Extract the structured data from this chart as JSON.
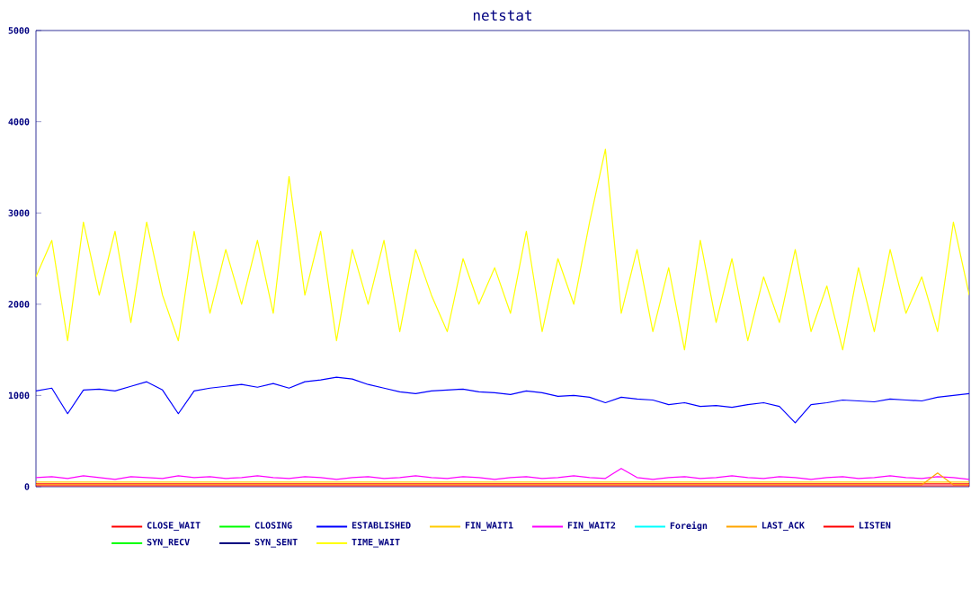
{
  "chart_data": {
    "type": "line",
    "title": "netstat",
    "categories": [
      null,
      null,
      null,
      null,
      null,
      null,
      null,
      null,
      null,
      null,
      null,
      null,
      null,
      null,
      null,
      null,
      null,
      null,
      null,
      null,
      null,
      null,
      null,
      null,
      null,
      null,
      null,
      null,
      null,
      null,
      null,
      null,
      null,
      null,
      null,
      null,
      null,
      null,
      null,
      null,
      null,
      null,
      null,
      null,
      null,
      null,
      null,
      null,
      null,
      null,
      null,
      null,
      null,
      null,
      null,
      null,
      null,
      null,
      null,
      null
    ],
    "ylim": [
      0,
      5000
    ],
    "yticks": [
      0,
      1000,
      2000,
      3000,
      4000,
      5000
    ],
    "grid": false,
    "legend": "bottom",
    "marker": "none",
    "line_style": "solid",
    "series": [
      {
        "name": "CLOSE_WAIT",
        "color": "#ff0000",
        "values": [
          30,
          30,
          30,
          30,
          30,
          30,
          30,
          30,
          30,
          30,
          30,
          30,
          30,
          30,
          30,
          30,
          30,
          30,
          30,
          30,
          30,
          30,
          30,
          30,
          30,
          30,
          30,
          30,
          30,
          30,
          30,
          30,
          30,
          30,
          30,
          30,
          30,
          30,
          30,
          30,
          30,
          30,
          30,
          30,
          30,
          30,
          30,
          30,
          30,
          30,
          30,
          30,
          30,
          30,
          30,
          30,
          30,
          30,
          30,
          30
        ]
      },
      {
        "name": "CLOSING",
        "color": "#00ff00",
        "values": [
          null,
          null,
          null,
          null,
          null,
          null,
          null,
          null,
          null,
          null,
          null,
          null,
          null,
          null,
          null,
          null,
          null,
          null,
          null,
          null,
          null,
          null,
          null,
          null,
          null,
          null,
          null,
          null,
          null,
          null,
          null,
          null,
          null,
          null,
          null,
          null,
          null,
          null,
          null,
          null,
          null,
          null,
          null,
          null,
          null,
          null,
          null,
          null,
          null,
          null,
          null,
          null,
          null,
          null,
          null,
          null,
          null,
          null,
          null,
          null
        ]
      },
      {
        "name": "ESTABLISHED",
        "color": "#0000ff",
        "values": [
          1050,
          1080,
          800,
          1060,
          1070,
          1050,
          1100,
          1150,
          1060,
          800,
          1050,
          1080,
          1100,
          1120,
          1090,
          1130,
          1080,
          1150,
          1170,
          1200,
          1180,
          1120,
          1080,
          1040,
          1020,
          1050,
          1060,
          1070,
          1040,
          1030,
          1010,
          1050,
          1030,
          990,
          1000,
          980,
          920,
          980,
          960,
          950,
          900,
          920,
          880,
          890,
          870,
          900,
          920,
          880,
          700,
          900,
          920,
          950,
          940,
          930,
          960,
          950,
          940,
          980,
          1000,
          1020
        ]
      },
      {
        "name": "FIN_WAIT1",
        "color": "#ffcc00",
        "values": [
          50,
          50,
          50,
          50,
          50,
          50,
          50,
          50,
          50,
          50,
          50,
          50,
          50,
          50,
          50,
          50,
          50,
          50,
          50,
          50,
          50,
          50,
          50,
          50,
          50,
          50,
          50,
          50,
          50,
          50,
          50,
          50,
          50,
          50,
          50,
          50,
          50,
          50,
          50,
          50,
          50,
          50,
          50,
          50,
          50,
          50,
          50,
          50,
          50,
          50,
          50,
          50,
          50,
          50,
          50,
          50,
          50,
          50,
          50,
          50
        ]
      },
      {
        "name": "FIN_WAIT2",
        "color": "#ff00ff",
        "values": [
          100,
          110,
          90,
          120,
          100,
          80,
          110,
          100,
          90,
          120,
          100,
          110,
          90,
          100,
          120,
          100,
          90,
          110,
          100,
          80,
          100,
          110,
          90,
          100,
          120,
          100,
          90,
          110,
          100,
          80,
          100,
          110,
          90,
          100,
          120,
          100,
          90,
          200,
          100,
          80,
          100,
          110,
          90,
          100,
          120,
          100,
          90,
          110,
          100,
          80,
          100,
          110,
          90,
          100,
          120,
          100,
          90,
          110,
          100,
          80
        ]
      },
      {
        "name": "Foreign",
        "color": "#00ffff",
        "values": [
          null,
          null,
          null,
          null,
          null,
          null,
          null,
          null,
          null,
          null,
          null,
          null,
          null,
          null,
          null,
          null,
          null,
          null,
          null,
          null,
          null,
          null,
          null,
          null,
          null,
          null,
          null,
          null,
          null,
          null,
          null,
          null,
          null,
          null,
          null,
          null,
          null,
          null,
          null,
          null,
          null,
          null,
          null,
          null,
          null,
          null,
          null,
          null,
          null,
          null,
          null,
          null,
          null,
          null,
          null,
          null,
          null,
          null,
          null,
          null
        ]
      },
      {
        "name": "LAST_ACK",
        "color": "#ffa500",
        "values": [
          20,
          20,
          20,
          20,
          20,
          20,
          20,
          20,
          20,
          20,
          20,
          20,
          20,
          20,
          20,
          20,
          20,
          20,
          20,
          20,
          20,
          20,
          20,
          20,
          20,
          20,
          20,
          20,
          20,
          20,
          20,
          20,
          20,
          20,
          20,
          20,
          20,
          20,
          20,
          20,
          20,
          20,
          20,
          20,
          20,
          20,
          20,
          20,
          20,
          20,
          20,
          20,
          20,
          20,
          20,
          20,
          20,
          150,
          20,
          20
        ]
      },
      {
        "name": "LISTEN",
        "color": "#ff0000",
        "values": [
          10,
          10,
          10,
          10,
          10,
          10,
          10,
          10,
          10,
          10,
          10,
          10,
          10,
          10,
          10,
          10,
          10,
          10,
          10,
          10,
          10,
          10,
          10,
          10,
          10,
          10,
          10,
          10,
          10,
          10,
          10,
          10,
          10,
          10,
          10,
          10,
          10,
          10,
          10,
          10,
          10,
          10,
          10,
          10,
          10,
          10,
          10,
          10,
          10,
          10,
          10,
          10,
          10,
          10,
          10,
          10,
          10,
          10,
          10,
          10
        ]
      },
      {
        "name": "SYN_RECV",
        "color": "#00ff00",
        "values": [
          null,
          null,
          null,
          null,
          null,
          null,
          null,
          null,
          null,
          null,
          null,
          null,
          null,
          null,
          null,
          null,
          null,
          null,
          null,
          null,
          null,
          null,
          null,
          null,
          null,
          null,
          null,
          null,
          null,
          null,
          null,
          null,
          null,
          null,
          null,
          null,
          null,
          null,
          null,
          null,
          null,
          null,
          null,
          null,
          null,
          null,
          null,
          null,
          null,
          null,
          null,
          null,
          null,
          null,
          null,
          null,
          null,
          null,
          null,
          null
        ]
      },
      {
        "name": "SYN_SENT",
        "color": "#000080",
        "values": [
          null,
          null,
          null,
          null,
          null,
          null,
          null,
          null,
          null,
          null,
          null,
          null,
          null,
          null,
          null,
          null,
          null,
          null,
          null,
          null,
          null,
          null,
          null,
          null,
          null,
          null,
          null,
          null,
          null,
          null,
          null,
          null,
          null,
          null,
          null,
          null,
          null,
          null,
          null,
          null,
          null,
          null,
          null,
          null,
          null,
          null,
          null,
          null,
          null,
          null,
          null,
          null,
          null,
          null,
          null,
          null,
          null,
          null,
          null,
          null
        ]
      },
      {
        "name": "TIME_WAIT",
        "color": "#ffff00",
        "values": [
          2300,
          2700,
          1600,
          2900,
          2100,
          2800,
          1800,
          2900,
          2100,
          1600,
          2800,
          1900,
          2600,
          2000,
          2700,
          1900,
          3400,
          2100,
          2800,
          1600,
          2600,
          2000,
          2700,
          1700,
          2600,
          2100,
          1700,
          2500,
          2000,
          2400,
          1900,
          2800,
          1700,
          2500,
          2000,
          2900,
          3700,
          1900,
          2600,
          1700,
          2400,
          1500,
          2700,
          1800,
          2500,
          1600,
          2300,
          1800,
          2600,
          1700,
          2200,
          1500,
          2400,
          1700,
          2600,
          1900,
          2300,
          1700,
          2900,
          2100
        ]
      }
    ]
  }
}
